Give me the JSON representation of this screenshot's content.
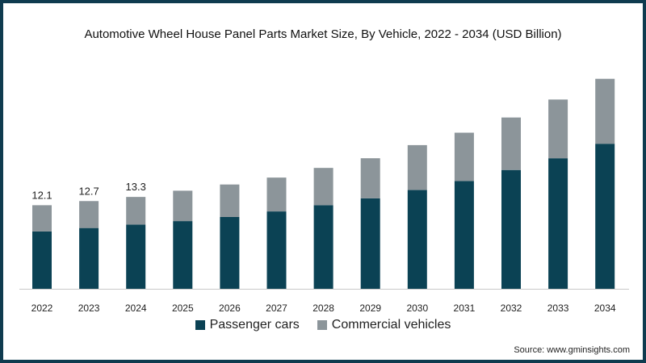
{
  "colors": {
    "passenger": "#0b4254",
    "commercial": "#8c959a",
    "frame": "#0f3b4f"
  },
  "chart_data": {
    "type": "bar",
    "stacked": true,
    "title": "Automotive Wheel House Panel Parts Market Size, By Vehicle, 2022 - 2034 (USD Billion)",
    "categories": [
      "2022",
      "2023",
      "2024",
      "2025",
      "2026",
      "2027",
      "2028",
      "2029",
      "2030",
      "2031",
      "2032",
      "2033",
      "2034"
    ],
    "series": [
      {
        "name": "Passenger cars",
        "values": [
          8.3,
          8.8,
          9.3,
          9.8,
          10.4,
          11.2,
          12.1,
          13.1,
          14.3,
          15.6,
          17.2,
          18.9,
          21.0
        ]
      },
      {
        "name": "Commercial vehicles",
        "values": [
          3.8,
          3.9,
          4.0,
          4.4,
          4.7,
          4.9,
          5.4,
          5.8,
          6.5,
          7.0,
          7.6,
          8.5,
          9.4
        ]
      }
    ],
    "data_labels": [
      "12.1",
      "12.7",
      "13.3",
      "",
      "",
      "",
      "",
      "",
      "",
      "",
      "",
      "",
      ""
    ],
    "ylim": [
      0,
      32
    ],
    "xlabel": "",
    "ylabel": "",
    "legend_position": "bottom"
  },
  "source": "Source: www.gminsights.com"
}
